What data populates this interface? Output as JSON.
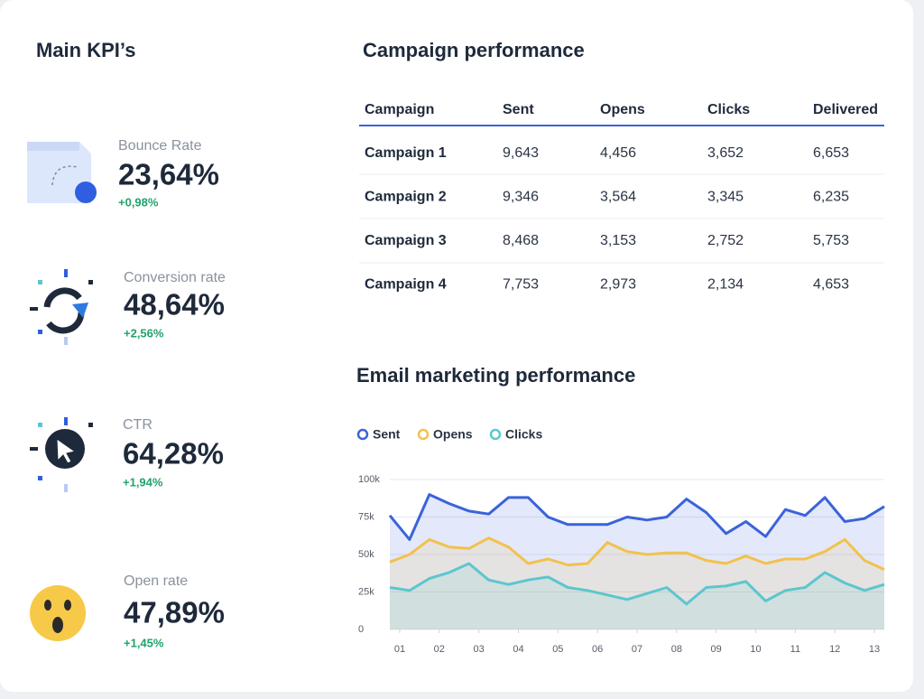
{
  "kpi_title": "Main KPI’s",
  "kpis": [
    {
      "label": "Bounce Rate",
      "value": "23,64%",
      "change": "+0,98%"
    },
    {
      "label": "Conversion rate",
      "value": "48,64%",
      "change": "+2,56%"
    },
    {
      "label": "CTR",
      "value": "64,28%",
      "change": "+1,94%"
    },
    {
      "label": "Open rate",
      "value": "47,89%",
      "change": "+1,45%"
    }
  ],
  "table": {
    "title": "Campaign performance",
    "header": [
      "Campaign",
      "Sent",
      "Opens",
      "Clicks",
      "Delivered"
    ],
    "rows": [
      [
        "Campaign 1",
        "9,643",
        "4,456",
        "3,652",
        "6,653"
      ],
      [
        "Campaign 2",
        "9,346",
        "3,564",
        "3,345",
        "6,235"
      ],
      [
        "Campaign 3",
        "8,468",
        "3,153",
        "2,752",
        "5,753"
      ],
      [
        "Campaign 4",
        "7,753",
        "2,973",
        "2,134",
        "4,653"
      ]
    ]
  },
  "chart_data": {
    "type": "area",
    "title": "Email marketing performance",
    "x": [
      0.75,
      1.25,
      1.75,
      2.25,
      2.75,
      3.25,
      3.75,
      4.25,
      4.75,
      5.25,
      5.75,
      6.25,
      6.75,
      7.25,
      7.75,
      8.25,
      8.75,
      9.25,
      9.75,
      10.25,
      10.75,
      11.25,
      11.75,
      12.25,
      12.75,
      13.25
    ],
    "series": [
      {
        "name": "Sent",
        "color": "#3b63d9",
        "values": [
          76000,
          60000,
          90000,
          84000,
          79000,
          77000,
          88000,
          88000,
          75000,
          70000,
          70000,
          70000,
          75000,
          73000,
          75000,
          87000,
          78000,
          64000,
          72000,
          62000,
          80000,
          76000,
          88000,
          72000,
          74000,
          82000
        ]
      },
      {
        "name": "Opens",
        "color": "#f2c14e",
        "values": [
          45000,
          50000,
          60000,
          55000,
          54000,
          61000,
          55000,
          44000,
          47000,
          43000,
          44000,
          58000,
          52000,
          50000,
          51000,
          51000,
          46000,
          44000,
          49000,
          44000,
          47000,
          47000,
          52000,
          60000,
          46000,
          40000
        ]
      },
      {
        "name": "Clicks",
        "color": "#5cc6cf",
        "values": [
          28000,
          26000,
          34000,
          38000,
          44000,
          33000,
          30000,
          33000,
          35000,
          28000,
          26000,
          23000,
          20000,
          24000,
          28000,
          17000,
          28000,
          29000,
          32000,
          19000,
          26000,
          28000,
          38000,
          31000,
          26000,
          30000
        ]
      }
    ],
    "xlim": [
      0.75,
      13.25
    ],
    "xticks": [
      {
        "value": 1,
        "label": "01"
      },
      {
        "value": 2,
        "label": "02"
      },
      {
        "value": 3,
        "label": "03"
      },
      {
        "value": 4,
        "label": "04"
      },
      {
        "value": 5,
        "label": "05"
      },
      {
        "value": 6,
        "label": "06"
      },
      {
        "value": 7,
        "label": "07"
      },
      {
        "value": 8,
        "label": "08"
      },
      {
        "value": 9,
        "label": "09"
      },
      {
        "value": 10,
        "label": "10"
      },
      {
        "value": 11,
        "label": "11"
      },
      {
        "value": 12,
        "label": "12"
      },
      {
        "value": 13,
        "label": "13"
      }
    ],
    "ylim": [
      0,
      100000
    ],
    "yticks": [
      0,
      {
        "value": 25000,
        "label": "25k"
      },
      {
        "value": 50000,
        "label": "50k"
      },
      {
        "value": 75000,
        "label": "75k"
      },
      {
        "value": 100000,
        "label": "100k"
      }
    ],
    "grid": true
  }
}
